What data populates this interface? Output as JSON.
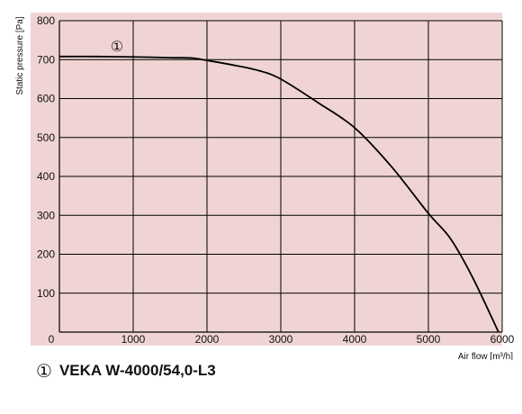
{
  "chart_data": {
    "type": "line",
    "title": "",
    "xlabel": "Air flow [m³/h]",
    "ylabel": "Static pressure [Pa]",
    "xlim": [
      0,
      6000
    ],
    "ylim": [
      0,
      800
    ],
    "grid": true,
    "background_color": "#f0d4d4",
    "line_color": "#000000",
    "x_ticks": [
      0,
      1000,
      2000,
      3000,
      4000,
      5000,
      6000
    ],
    "x_tick_labels": [
      "0",
      "1000",
      "2000",
      "3000",
      "4000",
      "5000",
      "6000"
    ],
    "y_ticks": [
      100,
      200,
      300,
      400,
      500,
      600,
      700,
      800
    ],
    "y_tick_labels": [
      "100",
      "200",
      "300",
      "400",
      "500",
      "600",
      "700",
      "800"
    ],
    "series": [
      {
        "name": "VEKA W-4000/54,0-L3",
        "marker": "①",
        "x": [
          0,
          500,
          1000,
          1500,
          1800,
          2000,
          2300,
          2700,
          3000,
          3500,
          4000,
          4500,
          5000,
          5300,
          5600,
          5950
        ],
        "y": [
          708,
          708,
          707,
          705,
          704,
          698,
          688,
          672,
          650,
          590,
          525,
          425,
          305,
          240,
          140,
          0
        ]
      }
    ],
    "curve_marker": {
      "label": "①",
      "x": 780,
      "y": 735
    }
  },
  "legend": {
    "marker": "①",
    "name": "VEKA W-4000/54,0-L3"
  }
}
